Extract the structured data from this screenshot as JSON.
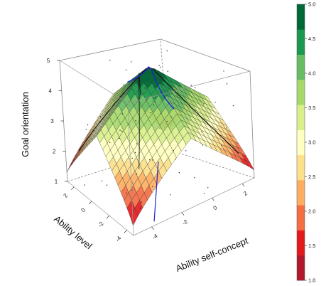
{
  "chart_data": {
    "type": "surface3d",
    "title": "",
    "zlabel": "Goal orientation",
    "xlabel": "Ability level",
    "ylabel": "Ability self-concept",
    "zlim": [
      1,
      5
    ],
    "z_ticks": [
      "1",
      "2",
      "3",
      "4",
      "5"
    ],
    "x_ticks": [
      "2",
      "0",
      "-2",
      "-4"
    ],
    "y_ticks": [
      "-4",
      "-2",
      "0",
      "2"
    ],
    "colorbar": {
      "ticks": [
        "1.0",
        "1.5",
        "2.0",
        "2.5",
        "3.0",
        "3.5",
        "4.0",
        "4.5",
        "5.0"
      ],
      "colors": [
        "#b2182b",
        "#e31a1c",
        "#f46d43",
        "#fdae61",
        "#fee08b",
        "#ffffbf",
        "#d9ef8b",
        "#a6d96a",
        "#66bd63",
        "#1a9850",
        "#006837"
      ]
    },
    "surface_description_levels": [
      1.0,
      1.5,
      2.0,
      2.5,
      3.0,
      3.5,
      4.0,
      4.5,
      5.0
    ],
    "peak_value": 5.0,
    "corner_values": [
      1.3,
      2.3,
      2.3,
      1.3
    ],
    "lines": [
      {
        "name": "",
        "color": "#2222cc"
      },
      {
        "name": "",
        "color": "#111111"
      }
    ],
    "grid": false,
    "legend": "right"
  }
}
